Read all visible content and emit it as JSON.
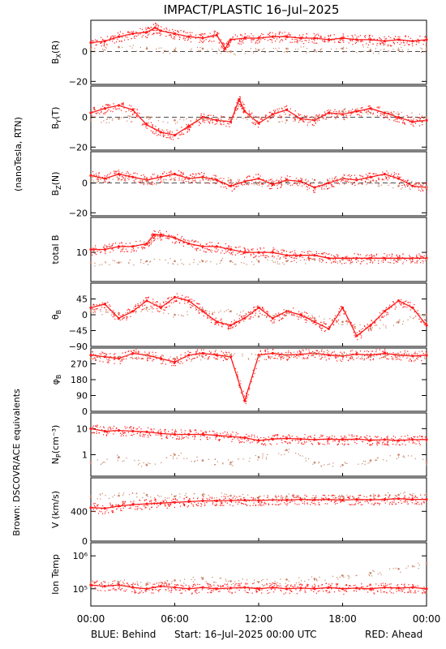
{
  "title": "IMPACT/PLASTIC   16–Jul–2025",
  "left_label": "(nanoTesla, RTN)",
  "side_note": "Brown: DSCOVR/ACE equivalents",
  "footer": {
    "behind": "BLUE: Behind",
    "start": "Start: 16–Jul–2025 00:00 UTC",
    "ahead": "RED: Ahead"
  },
  "colors": {
    "ahead": "#ff1a1a",
    "equivalent": "#c8866a",
    "behind": "#1a1adc",
    "side_note": "#d4967a"
  },
  "x_ticks": [
    "00:00",
    "06:00",
    "12:00",
    "18:00",
    "00:00"
  ],
  "chart_data": [
    {
      "type": "scatter",
      "id": "bx",
      "ylabel": "B",
      "ysub": "X",
      "yparen": "(R)",
      "ylim": [
        -22,
        21
      ],
      "yticks": [
        "0",
        "−20"
      ],
      "ytick_values": [
        0,
        -20
      ],
      "zero_line": true,
      "series": [
        {
          "role": "ahead",
          "x_hours": [
            0,
            1,
            2,
            3,
            4,
            4.6,
            5,
            6,
            7,
            8,
            9,
            9.6,
            10,
            11,
            12,
            13,
            14,
            15,
            16,
            17,
            18,
            19,
            20,
            21,
            22,
            23,
            24
          ],
          "y": [
            6,
            7,
            10,
            12,
            13,
            16,
            14,
            12,
            10,
            9,
            11,
            2,
            8,
            9,
            9,
            10,
            10,
            9,
            9,
            8,
            9,
            8,
            8,
            7,
            8,
            7,
            8
          ]
        },
        {
          "role": "equivalent",
          "x_hours": [
            0,
            2,
            4,
            6,
            8,
            10,
            12,
            14,
            16,
            18,
            20,
            22,
            24
          ],
          "y": [
            2,
            3,
            2,
            1,
            2,
            0,
            1,
            2,
            1,
            2,
            1,
            1,
            2
          ]
        }
      ]
    },
    {
      "type": "scatter",
      "id": "by",
      "ylabel": "B",
      "ysub": "Y",
      "yparen": "(T)",
      "ylim": [
        -22,
        21
      ],
      "yticks": [
        "0",
        "−20"
      ],
      "ytick_values": [
        0,
        -20
      ],
      "zero_line": true,
      "series": [
        {
          "role": "ahead",
          "x_hours": [
            0,
            1,
            2,
            3,
            4,
            5,
            6,
            7,
            8,
            9,
            10,
            10.6,
            11,
            12,
            13,
            14,
            15,
            16,
            17,
            18,
            19,
            20,
            21,
            22,
            23,
            24
          ],
          "y": [
            3,
            6,
            8,
            5,
            -5,
            -10,
            -12,
            -6,
            0,
            -2,
            -3,
            12,
            4,
            -4,
            2,
            5,
            -1,
            -2,
            3,
            2,
            4,
            6,
            3,
            0,
            -3,
            -2
          ]
        },
        {
          "role": "equivalent",
          "x_hours": [
            0,
            2,
            4,
            6,
            8,
            10,
            12,
            14,
            16,
            18,
            20,
            22,
            24
          ],
          "y": [
            -2,
            -1,
            0,
            -2,
            -1,
            -1,
            0,
            -2,
            -1,
            4,
            3,
            2,
            0
          ]
        }
      ]
    },
    {
      "type": "scatter",
      "id": "bz",
      "ylabel": "B",
      "ysub": "Z",
      "yparen": "(N)",
      "ylim": [
        -22,
        21
      ],
      "yticks": [
        "0",
        "−20"
      ],
      "ytick_values": [
        0,
        -20
      ],
      "zero_line": true,
      "series": [
        {
          "role": "ahead",
          "x_hours": [
            0,
            1,
            2,
            3,
            4,
            5,
            6,
            7,
            8,
            9,
            10,
            11,
            12,
            13,
            14,
            15,
            16,
            17,
            18,
            19,
            20,
            21,
            22,
            23,
            24
          ],
          "y": [
            5,
            3,
            6,
            4,
            2,
            4,
            6,
            3,
            4,
            2,
            -2,
            1,
            3,
            -1,
            2,
            1,
            -3,
            0,
            3,
            2,
            4,
            6,
            3,
            -2,
            -3
          ]
        },
        {
          "role": "equivalent",
          "x_hours": [
            0,
            2,
            4,
            6,
            8,
            10,
            12,
            14,
            16,
            18,
            20,
            22,
            24
          ],
          "y": [
            2,
            3,
            1,
            2,
            3,
            2,
            0,
            1,
            2,
            3,
            1,
            -2,
            -3
          ]
        }
      ]
    },
    {
      "type": "scatter",
      "id": "btot",
      "ylabel": "total B",
      "ylim": [
        0,
        22
      ],
      "yticks": [
        "10"
      ],
      "ytick_values": [
        10
      ],
      "zero_line": false,
      "series": [
        {
          "role": "ahead",
          "x_hours": [
            0,
            1,
            2,
            3,
            4,
            4.5,
            5,
            6,
            7,
            8,
            9,
            10,
            11,
            12,
            13,
            14,
            15,
            16,
            17,
            18,
            19,
            20,
            21,
            22,
            23,
            24
          ],
          "y": [
            11,
            11,
            12,
            12,
            13,
            16,
            16,
            15,
            13,
            12,
            12,
            11,
            10,
            10,
            10,
            9,
            9,
            9,
            8,
            8,
            8,
            8,
            8,
            8,
            8,
            8
          ]
        },
        {
          "role": "equivalent",
          "x_hours": [
            0,
            2,
            4,
            6,
            8,
            10,
            12,
            14,
            16,
            18,
            20,
            22,
            24
          ],
          "y": [
            6.5,
            6.5,
            7,
            7,
            7,
            7,
            7,
            7,
            7.5,
            7.5,
            7.5,
            7.5,
            7.5
          ]
        }
      ]
    },
    {
      "type": "scatter",
      "id": "theta",
      "ylabel": "θ",
      "ysub": "B",
      "ylim": [
        -90,
        90
      ],
      "yticks": [
        "45",
        "0",
        "−45",
        "−90"
      ],
      "ytick_values": [
        45,
        0,
        -45,
        -90
      ],
      "zero_line": false,
      "series": [
        {
          "role": "ahead",
          "x_hours": [
            0,
            1,
            2,
            3,
            4,
            5,
            6,
            7,
            8,
            9,
            10,
            11,
            12,
            13,
            14,
            15,
            16,
            17,
            18,
            19,
            20,
            21,
            22,
            23,
            24
          ],
          "y": [
            20,
            30,
            -10,
            10,
            40,
            20,
            50,
            40,
            10,
            -20,
            -30,
            -10,
            20,
            -10,
            10,
            0,
            -20,
            -40,
            20,
            -60,
            -30,
            10,
            40,
            20,
            -30
          ]
        },
        {
          "role": "equivalent",
          "x_hours": [
            0,
            2,
            4,
            6,
            8,
            10,
            12,
            14,
            16,
            18,
            20,
            22,
            24
          ],
          "y": [
            10,
            5,
            20,
            0,
            15,
            10,
            -5,
            5,
            -10,
            -20,
            -40,
            -20,
            0
          ]
        }
      ]
    },
    {
      "type": "scatter",
      "id": "phi",
      "ylabel": "φ",
      "ysub": "B",
      "ylim": [
        0,
        360
      ],
      "yticks": [
        "270",
        "180",
        "90",
        "0"
      ],
      "ytick_values": [
        270,
        180,
        90,
        0
      ],
      "zero_line": false,
      "series": [
        {
          "role": "ahead",
          "x_hours": [
            0,
            1,
            2,
            3,
            4,
            5,
            6,
            7,
            8,
            9,
            10,
            11,
            12,
            13,
            14,
            15,
            16,
            17,
            18,
            19,
            20,
            21,
            22,
            23,
            24
          ],
          "y": [
            320,
            310,
            300,
            330,
            320,
            300,
            280,
            320,
            330,
            320,
            310,
            60,
            320,
            330,
            320,
            325,
            330,
            320,
            315,
            325,
            320,
            330,
            320,
            315,
            320
          ]
        },
        {
          "role": "equivalent",
          "x_hours": [
            0,
            2,
            4,
            6,
            8,
            10,
            12,
            14,
            16,
            18,
            20,
            22,
            24
          ],
          "y": [
            300,
            310,
            320,
            300,
            310,
            320,
            310,
            320,
            330,
            320,
            310,
            320,
            330
          ]
        }
      ]
    },
    {
      "type": "scatter",
      "id": "np",
      "ylabel": "N",
      "ysub": "P",
      "yparen": "(cm⁻³)",
      "yscale": "log",
      "ylim": [
        0.15,
        40
      ],
      "yticks": [
        "10",
        "1"
      ],
      "ytick_values": [
        10,
        1
      ],
      "zero_line": false,
      "series": [
        {
          "role": "ahead",
          "x_hours": [
            0,
            1,
            2,
            3,
            4,
            5,
            6,
            7,
            8,
            9,
            10,
            11,
            12,
            13,
            14,
            15,
            16,
            17,
            18,
            19,
            20,
            21,
            22,
            23,
            24
          ],
          "y": [
            10,
            8,
            8.5,
            8,
            7.5,
            6.5,
            6,
            6,
            6,
            5.5,
            5,
            4.5,
            3.5,
            4,
            4.2,
            4,
            3.8,
            4,
            3.8,
            4,
            3.6,
            3.8,
            3.5,
            3.8,
            3.8
          ]
        },
        {
          "role": "equivalent",
          "x_hours": [
            0,
            2,
            4,
            6,
            8,
            10,
            12,
            14,
            16,
            18,
            20,
            22,
            24
          ],
          "y": [
            0.5,
            0.8,
            0.4,
            1,
            0.6,
            0.5,
            0.8,
            1.5,
            0.5,
            0.4,
            0.6,
            1,
            0.5
          ]
        }
      ]
    },
    {
      "type": "scatter",
      "id": "v",
      "ylabel": "V (km/s)",
      "ylim": [
        0,
        850
      ],
      "yticks": [
        "400",
        "0"
      ],
      "ytick_values": [
        400,
        0
      ],
      "zero_line": false,
      "series": [
        {
          "role": "ahead",
          "x_hours": [
            0,
            1,
            2,
            3,
            4,
            5,
            6,
            7,
            8,
            9,
            10,
            11,
            12,
            13,
            14,
            15,
            16,
            17,
            18,
            19,
            20,
            21,
            22,
            23,
            24
          ],
          "y": [
            450,
            440,
            470,
            490,
            500,
            510,
            520,
            530,
            540,
            540,
            545,
            550,
            545,
            555,
            550,
            560,
            555,
            560,
            550,
            560,
            555,
            560,
            570,
            560,
            560
          ]
        },
        {
          "role": "equivalent",
          "x_hours": [
            0,
            2,
            4,
            6,
            8,
            10,
            12,
            14,
            16,
            18,
            20,
            22,
            24
          ],
          "y": [
            600,
            610,
            620,
            600,
            620,
            610,
            590,
            600,
            580,
            600,
            610,
            620,
            630
          ]
        }
      ]
    },
    {
      "type": "scatter",
      "id": "temp",
      "ylabel": "Ion Temp",
      "yscale": "log",
      "ylim": [
        30000,
        2500000
      ],
      "yticks": [
        "10⁶",
        "10⁵"
      ],
      "ytick_values": [
        1000000,
        100000
      ],
      "zero_line": false,
      "series": [
        {
          "role": "ahead",
          "x_hours": [
            0,
            1,
            2,
            3,
            4,
            5,
            6,
            7,
            8,
            9,
            10,
            11,
            12,
            13,
            14,
            15,
            16,
            17,
            18,
            19,
            20,
            21,
            22,
            23,
            24
          ],
          "y": [
            130000,
            120000,
            130000,
            110000,
            100000,
            120000,
            110000,
            100000,
            110000,
            100000,
            105000,
            110000,
            100000,
            110000,
            100000,
            105000,
            100000,
            110000,
            100000,
            105000,
            100000,
            110000,
            105000,
            110000,
            100000
          ]
        },
        {
          "role": "equivalent",
          "x_hours": [
            0,
            2,
            4,
            6,
            8,
            10,
            12,
            14,
            16,
            18,
            20,
            22,
            24
          ],
          "y": [
            150000,
            160000,
            140000,
            180000,
            200000,
            170000,
            160000,
            190000,
            200000,
            250000,
            300000,
            400000,
            600000
          ]
        }
      ]
    }
  ]
}
